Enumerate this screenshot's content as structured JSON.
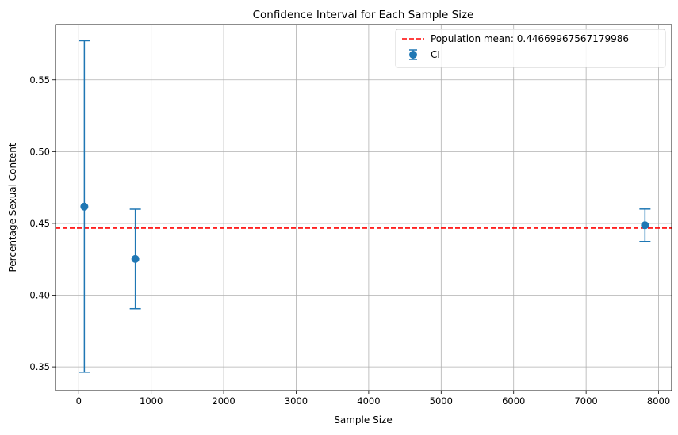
{
  "chart_data": {
    "type": "scatter",
    "title": "Confidence Interval for Each Sample Size",
    "xlabel": "Sample Size",
    "ylabel": "Percentage Sexual Content",
    "xlim": [
      -320,
      8180
    ],
    "ylim": [
      0.3335,
      0.5885
    ],
    "x_ticks": [
      0,
      1000,
      2000,
      3000,
      4000,
      5000,
      6000,
      7000,
      8000
    ],
    "y_ticks": [
      0.35,
      0.4,
      0.45,
      0.5,
      0.55
    ],
    "x_tick_labels": [
      "0",
      "1000",
      "2000",
      "3000",
      "4000",
      "5000",
      "6000",
      "7000",
      "8000"
    ],
    "y_tick_labels": [
      "0.35",
      "0.40",
      "0.45",
      "0.50",
      "0.55"
    ],
    "grid": true,
    "legend_position": "top-right",
    "series": [
      {
        "name": "CI",
        "kind": "errorbar",
        "color": "#1f77b4",
        "points": [
          {
            "x": 78,
            "y": 0.4617,
            "lower": 0.3463,
            "upper": 0.5772
          },
          {
            "x": 781,
            "y": 0.4252,
            "lower": 0.3905,
            "upper": 0.4599
          },
          {
            "x": 7812,
            "y": 0.4487,
            "lower": 0.4374,
            "upper": 0.46
          }
        ]
      }
    ],
    "reference_lines": [
      {
        "name": "Population mean: 0.44669967567179986",
        "orientation": "horizontal",
        "value": 0.44669967567179986,
        "color": "#ff0000",
        "style": "dashed"
      }
    ]
  }
}
